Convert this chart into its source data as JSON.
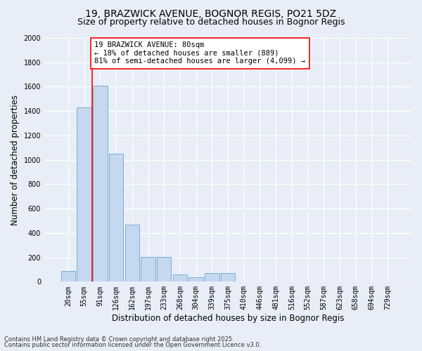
{
  "title": "19, BRAZWICK AVENUE, BOGNOR REGIS, PO21 5DZ",
  "subtitle": "Size of property relative to detached houses in Bognor Regis",
  "xlabel": "Distribution of detached houses by size in Bognor Regis",
  "ylabel": "Number of detached properties",
  "categories": [
    "20sqm",
    "55sqm",
    "91sqm",
    "126sqm",
    "162sqm",
    "197sqm",
    "233sqm",
    "268sqm",
    "304sqm",
    "339sqm",
    "375sqm",
    "410sqm",
    "446sqm",
    "481sqm",
    "516sqm",
    "552sqm",
    "587sqm",
    "623sqm",
    "658sqm",
    "694sqm",
    "729sqm"
  ],
  "values": [
    90,
    1430,
    1610,
    1050,
    470,
    205,
    205,
    60,
    35,
    70,
    70,
    0,
    0,
    0,
    0,
    0,
    0,
    0,
    0,
    0,
    0
  ],
  "bar_color": "#c5d8f0",
  "bar_edgecolor": "#7aadd4",
  "vline_x_index": 1.5,
  "vline_color": "red",
  "annotation_text": "19 BRAZWICK AVENUE: 80sqm\n← 18% of detached houses are smaller (889)\n81% of semi-detached houses are larger (4,099) →",
  "annotation_box_edgecolor": "red",
  "annotation_box_facecolor": "white",
  "ylim": [
    0,
    2000
  ],
  "yticks": [
    0,
    200,
    400,
    600,
    800,
    1000,
    1200,
    1400,
    1600,
    1800,
    2000
  ],
  "footer1": "Contains HM Land Registry data © Crown copyright and database right 2025.",
  "footer2": "Contains public sector information licensed under the Open Government Licence v3.0.",
  "bg_color": "#e8eef8",
  "plot_bg_color": "#e8eef8",
  "title_fontsize": 10,
  "subtitle_fontsize": 9,
  "tick_fontsize": 7,
  "label_fontsize": 8.5,
  "footer_fontsize": 6,
  "annotation_fontsize": 7.5
}
